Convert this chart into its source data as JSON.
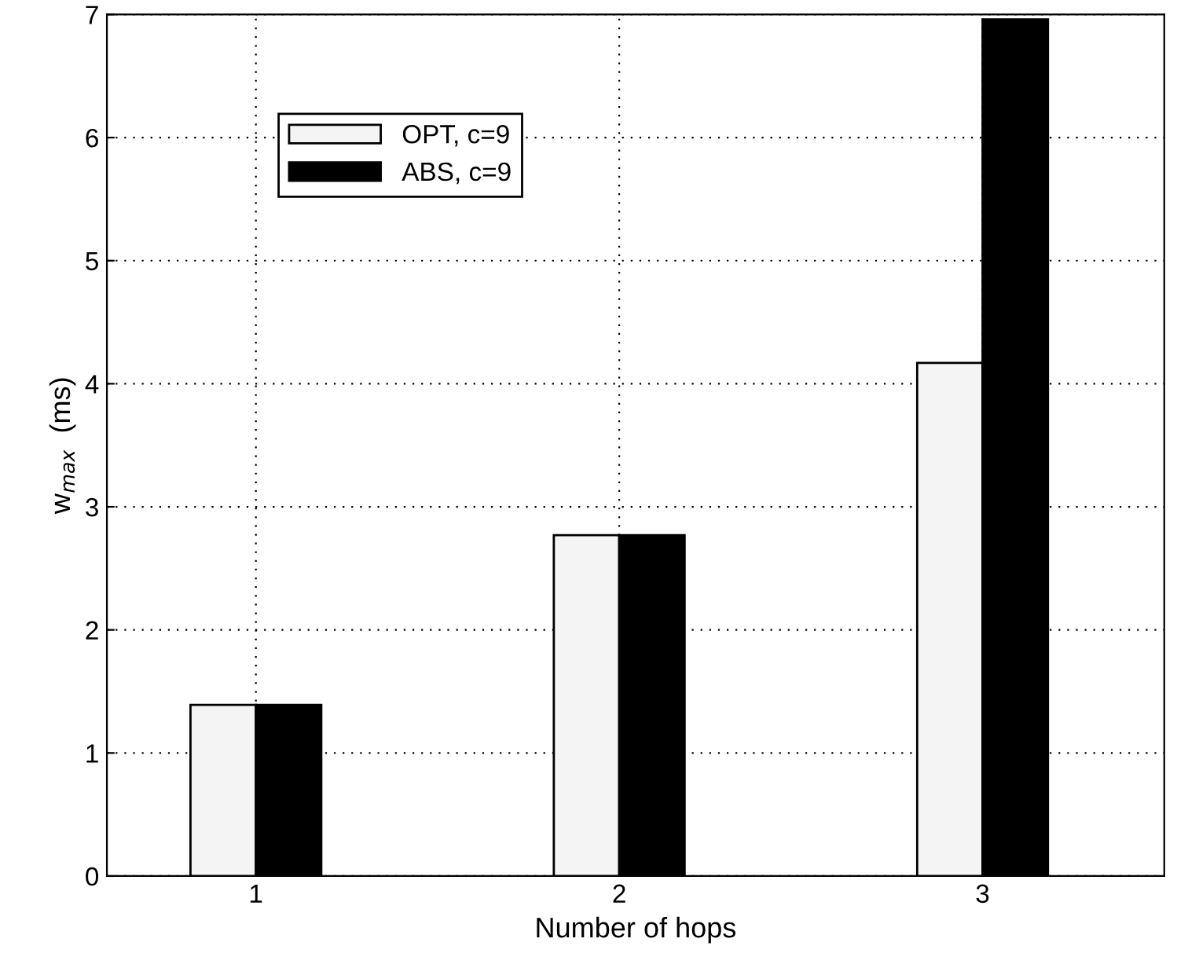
{
  "chart_data": {
    "type": "bar",
    "xlabel": "Number of hops",
    "ylabel": "w$_{max}$  (ms)",
    "categories": [
      "1",
      "2",
      "3"
    ],
    "series": [
      {
        "name": "OPT, c=9",
        "color": "#f4f4f4",
        "values": [
          1.39,
          2.77,
          4.17
        ]
      },
      {
        "name": "ABS, c=9",
        "color": "#000000",
        "values": [
          1.39,
          2.77,
          6.96
        ]
      }
    ],
    "ylim": [
      0,
      7
    ],
    "yticks": [
      0,
      1,
      2,
      3,
      4,
      5,
      6,
      7
    ],
    "grid": true,
    "legend": "top left"
  }
}
